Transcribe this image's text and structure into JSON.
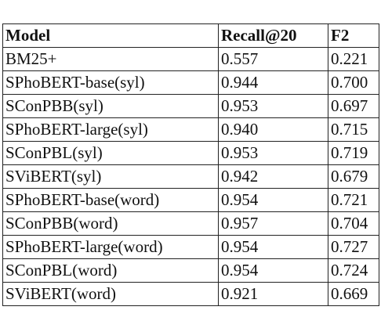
{
  "table": {
    "header": [
      "Model",
      "Recall@20",
      "F2"
    ],
    "rows": [
      [
        "BM25+",
        "0.557",
        "0.221"
      ],
      [
        "SPhoBERT-base(syl)",
        "0.944",
        "0.700"
      ],
      [
        "SConPBB(syl)",
        "0.953",
        "0.697"
      ],
      [
        "SPhoBERT-large(syl)",
        "0.940",
        "0.715"
      ],
      [
        "SConPBL(syl)",
        "0.953",
        "0.719"
      ],
      [
        "SViBERT(syl)",
        "0.942",
        "0.679"
      ],
      [
        "SPhoBERT-base(word)",
        "0.954",
        "0.721"
      ],
      [
        "SConPBB(word)",
        "0.957",
        "0.704"
      ],
      [
        "SPhoBERT-large(word)",
        "0.954",
        "0.727"
      ],
      [
        "SConPBL(word)",
        "0.954",
        "0.724"
      ],
      [
        "SViBERT(word)",
        "0.921",
        "0.669"
      ]
    ]
  }
}
